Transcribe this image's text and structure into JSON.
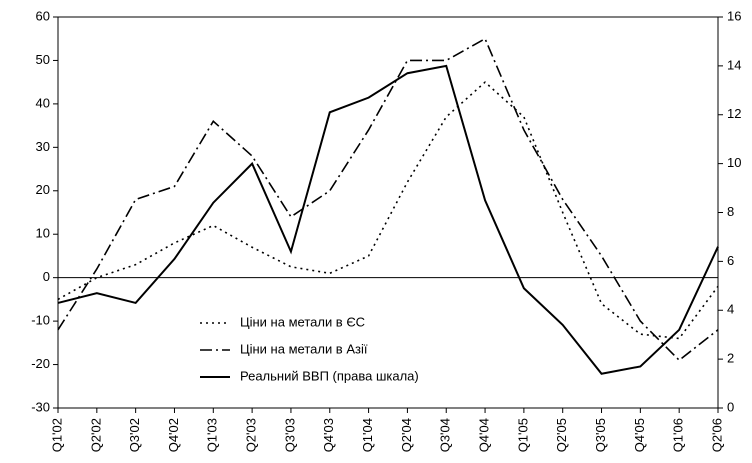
{
  "chart_data": {
    "type": "line",
    "categories": [
      "Q1'02",
      "Q2'02",
      "Q3'02",
      "Q4'02",
      "Q1'03",
      "Q2'03",
      "Q3'03",
      "Q4'03",
      "Q1'04",
      "Q2'04",
      "Q3'04",
      "Q4'04",
      "Q1'05",
      "Q2'05",
      "Q3'05",
      "Q4'05",
      "Q1'06",
      "Q2'06"
    ],
    "series": [
      {
        "name": "Ціни на метали в ЄС",
        "color": "#000000",
        "style": "dotted",
        "values": [
          -5,
          0,
          3,
          8,
          12,
          7,
          2.5,
          1,
          5,
          22,
          37,
          45,
          37,
          15,
          -6,
          -13,
          -14,
          -2
        ]
      },
      {
        "name": "Ціни на метали в Азії",
        "color": "#000000",
        "style": "dashdot",
        "values": [
          -12,
          2,
          18,
          21,
          36,
          28,
          14,
          20,
          34,
          50,
          50,
          55,
          34,
          18,
          5,
          -10,
          -19,
          -12
        ]
      },
      {
        "name": "Реальний ВВП (права шкала)",
        "color": "#000000",
        "style": "solid",
        "axis": "y2",
        "values": [
          4.3,
          4.7,
          4.3,
          6.1,
          8.4,
          10.0,
          6.4,
          12.1,
          12.7,
          13.7,
          14.0,
          8.5,
          4.9,
          3.4,
          1.4,
          1.7,
          3.2,
          6.6
        ]
      }
    ],
    "ylim": [
      -30,
      60
    ],
    "yticks": [
      -30,
      -20,
      -10,
      0,
      10,
      20,
      30,
      40,
      50,
      60
    ],
    "y2lim": [
      0,
      16
    ],
    "y2ticks": [
      0,
      2,
      4,
      6,
      8,
      10,
      12,
      14,
      16
    ],
    "legend": "center"
  }
}
